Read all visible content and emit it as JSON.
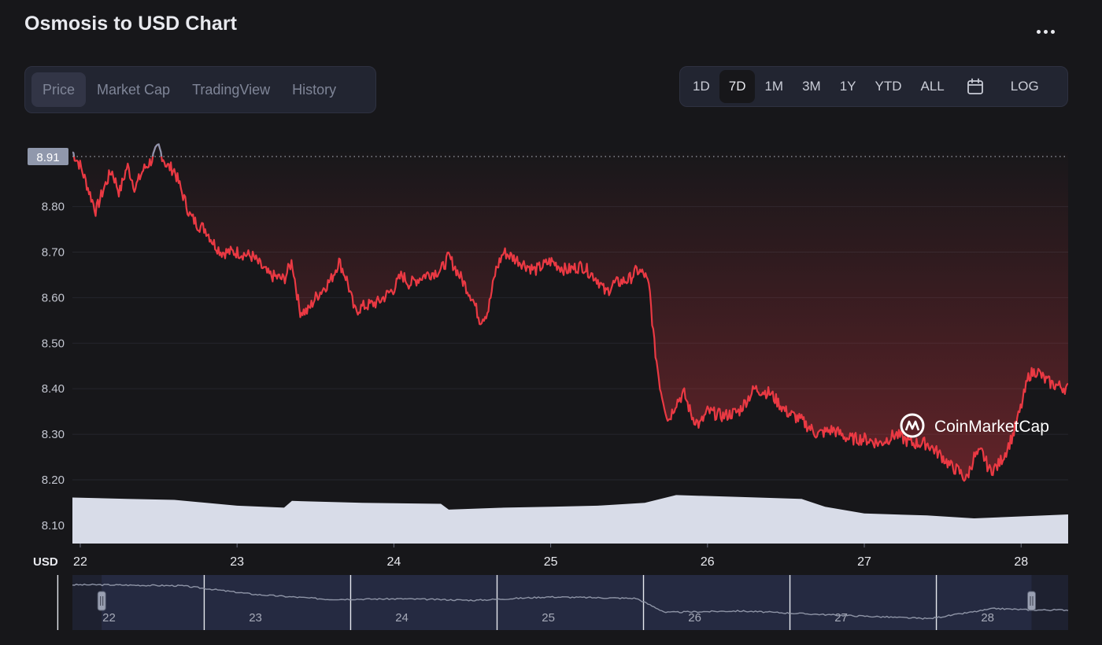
{
  "header": {
    "title": "Osmosis to USD Chart",
    "more_icon": "more-horizontal-icon"
  },
  "tabs": [
    {
      "label": "Price",
      "active": true
    },
    {
      "label": "Market Cap",
      "active": false
    },
    {
      "label": "TradingView",
      "active": false
    },
    {
      "label": "History",
      "active": false
    }
  ],
  "ranges": [
    "1D",
    "7D",
    "1M",
    "3M",
    "1Y",
    "YTD",
    "ALL"
  ],
  "active_range": "7D",
  "calendar_icon": "calendar-icon",
  "log_label": "LOG",
  "watermark": "CoinMarketCap",
  "colors": {
    "price_line": "#ea3943",
    "price_line_high": "#8b95ad",
    "volume": "#d8dce8",
    "navigator_line": "#8e94a6",
    "background": "#17171a"
  },
  "chart_data": {
    "type": "line",
    "currency_label": "USD",
    "current_price_label": "8.91",
    "y_ticks": [
      "8.10",
      "8.20",
      "8.30",
      "8.40",
      "8.50",
      "8.60",
      "8.70",
      "8.80"
    ],
    "ylim": [
      8.06,
      8.96
    ],
    "x_ticks": [
      "22",
      "23",
      "24",
      "25",
      "26",
      "27",
      "28"
    ],
    "navigator_ticks": [
      "22",
      "23",
      "24",
      "25",
      "26",
      "27",
      "28"
    ],
    "x_domain": [
      21.95,
      28.3
    ],
    "series": [
      {
        "values": [
          {
            "x": 21.95,
            "y": 8.92
          },
          {
            "x": 22.0,
            "y": 8.89
          },
          {
            "x": 22.05,
            "y": 8.84
          },
          {
            "x": 22.1,
            "y": 8.79
          },
          {
            "x": 22.15,
            "y": 8.84
          },
          {
            "x": 22.2,
            "y": 8.88
          },
          {
            "x": 22.25,
            "y": 8.83
          },
          {
            "x": 22.3,
            "y": 8.89
          },
          {
            "x": 22.35,
            "y": 8.84
          },
          {
            "x": 22.4,
            "y": 8.88
          },
          {
            "x": 22.45,
            "y": 8.9
          },
          {
            "x": 22.5,
            "y": 8.93
          },
          {
            "x": 22.55,
            "y": 8.89
          },
          {
            "x": 22.6,
            "y": 8.88
          },
          {
            "x": 22.65,
            "y": 8.83
          },
          {
            "x": 22.7,
            "y": 8.78
          },
          {
            "x": 22.75,
            "y": 8.76
          },
          {
            "x": 22.8,
            "y": 8.75
          },
          {
            "x": 22.85,
            "y": 8.72
          },
          {
            "x": 22.9,
            "y": 8.7
          },
          {
            "x": 23.0,
            "y": 8.7
          },
          {
            "x": 23.1,
            "y": 8.69
          },
          {
            "x": 23.2,
            "y": 8.65
          },
          {
            "x": 23.3,
            "y": 8.64
          },
          {
            "x": 23.35,
            "y": 8.68
          },
          {
            "x": 23.4,
            "y": 8.57
          },
          {
            "x": 23.45,
            "y": 8.57
          },
          {
            "x": 23.5,
            "y": 8.6
          },
          {
            "x": 23.55,
            "y": 8.62
          },
          {
            "x": 23.6,
            "y": 8.64
          },
          {
            "x": 23.65,
            "y": 8.68
          },
          {
            "x": 23.7,
            "y": 8.64
          },
          {
            "x": 23.75,
            "y": 8.57
          },
          {
            "x": 23.8,
            "y": 8.58
          },
          {
            "x": 23.9,
            "y": 8.59
          },
          {
            "x": 24.0,
            "y": 8.62
          },
          {
            "x": 24.05,
            "y": 8.65
          },
          {
            "x": 24.1,
            "y": 8.63
          },
          {
            "x": 24.2,
            "y": 8.65
          },
          {
            "x": 24.3,
            "y": 8.66
          },
          {
            "x": 24.35,
            "y": 8.69
          },
          {
            "x": 24.4,
            "y": 8.66
          },
          {
            "x": 24.5,
            "y": 8.6
          },
          {
            "x": 24.55,
            "y": 8.55
          },
          {
            "x": 24.6,
            "y": 8.57
          },
          {
            "x": 24.65,
            "y": 8.66
          },
          {
            "x": 24.7,
            "y": 8.7
          },
          {
            "x": 24.8,
            "y": 8.68
          },
          {
            "x": 24.9,
            "y": 8.66
          },
          {
            "x": 25.0,
            "y": 8.68
          },
          {
            "x": 25.1,
            "y": 8.66
          },
          {
            "x": 25.2,
            "y": 8.67
          },
          {
            "x": 25.3,
            "y": 8.64
          },
          {
            "x": 25.35,
            "y": 8.61
          },
          {
            "x": 25.4,
            "y": 8.63
          },
          {
            "x": 25.5,
            "y": 8.64
          },
          {
            "x": 25.55,
            "y": 8.66
          },
          {
            "x": 25.6,
            "y": 8.65
          },
          {
            "x": 25.63,
            "y": 8.62
          },
          {
            "x": 25.66,
            "y": 8.5
          },
          {
            "x": 25.7,
            "y": 8.4
          },
          {
            "x": 25.75,
            "y": 8.33
          },
          {
            "x": 25.8,
            "y": 8.37
          },
          {
            "x": 25.85,
            "y": 8.39
          },
          {
            "x": 25.9,
            "y": 8.34
          },
          {
            "x": 25.95,
            "y": 8.32
          },
          {
            "x": 26.0,
            "y": 8.35
          },
          {
            "x": 26.1,
            "y": 8.34
          },
          {
            "x": 26.2,
            "y": 8.35
          },
          {
            "x": 26.3,
            "y": 8.4
          },
          {
            "x": 26.4,
            "y": 8.39
          },
          {
            "x": 26.5,
            "y": 8.35
          },
          {
            "x": 26.6,
            "y": 8.33
          },
          {
            "x": 26.7,
            "y": 8.3
          },
          {
            "x": 26.8,
            "y": 8.31
          },
          {
            "x": 26.9,
            "y": 8.29
          },
          {
            "x": 27.0,
            "y": 8.29
          },
          {
            "x": 27.1,
            "y": 8.28
          },
          {
            "x": 27.2,
            "y": 8.3
          },
          {
            "x": 27.3,
            "y": 8.28
          },
          {
            "x": 27.4,
            "y": 8.28
          },
          {
            "x": 27.5,
            "y": 8.25
          },
          {
            "x": 27.55,
            "y": 8.23
          },
          {
            "x": 27.6,
            "y": 8.22
          },
          {
            "x": 27.65,
            "y": 8.2
          },
          {
            "x": 27.7,
            "y": 8.25
          },
          {
            "x": 27.75,
            "y": 8.26
          },
          {
            "x": 27.8,
            "y": 8.22
          },
          {
            "x": 27.85,
            "y": 8.23
          },
          {
            "x": 27.9,
            "y": 8.26
          },
          {
            "x": 27.95,
            "y": 8.3
          },
          {
            "x": 28.0,
            "y": 8.36
          },
          {
            "x": 28.05,
            "y": 8.43
          },
          {
            "x": 28.1,
            "y": 8.44
          },
          {
            "x": 28.15,
            "y": 8.42
          },
          {
            "x": 28.2,
            "y": 8.41
          },
          {
            "x": 28.3,
            "y": 8.4
          }
        ]
      }
    ],
    "volume_relative": [
      {
        "x": 21.95,
        "y": 0.95
      },
      {
        "x": 22.3,
        "y": 0.92
      },
      {
        "x": 22.6,
        "y": 0.9
      },
      {
        "x": 23.0,
        "y": 0.78
      },
      {
        "x": 23.3,
        "y": 0.74
      },
      {
        "x": 23.35,
        "y": 0.88
      },
      {
        "x": 23.8,
        "y": 0.84
      },
      {
        "x": 24.3,
        "y": 0.82
      },
      {
        "x": 24.35,
        "y": 0.7
      },
      {
        "x": 24.7,
        "y": 0.74
      },
      {
        "x": 25.0,
        "y": 0.76
      },
      {
        "x": 25.3,
        "y": 0.78
      },
      {
        "x": 25.6,
        "y": 0.84
      },
      {
        "x": 25.8,
        "y": 1.0
      },
      {
        "x": 26.2,
        "y": 0.96
      },
      {
        "x": 26.6,
        "y": 0.92
      },
      {
        "x": 26.75,
        "y": 0.76
      },
      {
        "x": 27.0,
        "y": 0.62
      },
      {
        "x": 27.4,
        "y": 0.58
      },
      {
        "x": 27.7,
        "y": 0.52
      },
      {
        "x": 28.0,
        "y": 0.56
      },
      {
        "x": 28.3,
        "y": 0.6
      }
    ],
    "navigator_series": [
      {
        "x": 21.95,
        "y": 8.92
      },
      {
        "x": 22.5,
        "y": 8.9
      },
      {
        "x": 23.0,
        "y": 8.72
      },
      {
        "x": 23.5,
        "y": 8.62
      },
      {
        "x": 24.0,
        "y": 8.63
      },
      {
        "x": 24.5,
        "y": 8.6
      },
      {
        "x": 25.0,
        "y": 8.67
      },
      {
        "x": 25.6,
        "y": 8.64
      },
      {
        "x": 25.8,
        "y": 8.35
      },
      {
        "x": 26.3,
        "y": 8.38
      },
      {
        "x": 27.0,
        "y": 8.29
      },
      {
        "x": 27.6,
        "y": 8.22
      },
      {
        "x": 28.05,
        "y": 8.43
      },
      {
        "x": 28.3,
        "y": 8.4
      }
    ],
    "navigator_window": [
      21.95,
      28.3
    ]
  }
}
